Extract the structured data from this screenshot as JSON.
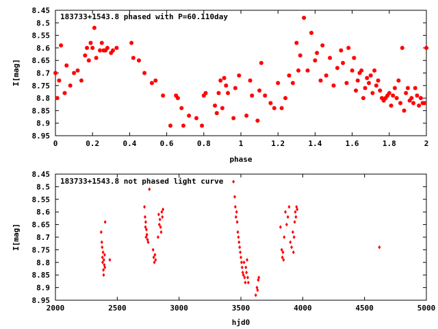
{
  "chart_data": [
    {
      "type": "scatter",
      "title": "183733+1543.8 phased with P=60.110day",
      "xlabel": "phase",
      "ylabel": "I[mag]",
      "xlim": [
        0,
        2
      ],
      "ylim": [
        8.95,
        8.45
      ],
      "y_inverted": true,
      "marker": "cross-star",
      "color": "#ff0000",
      "xticks": [
        "0",
        "0.2",
        "0.4",
        "0.6",
        "0.8",
        "1",
        "1.2",
        "1.4",
        "1.6",
        "1.8",
        "2"
      ],
      "yticks": [
        "8.45",
        "8.5",
        "8.55",
        "8.6",
        "8.65",
        "8.7",
        "8.75",
        "8.8",
        "8.85",
        "8.9",
        "8.95"
      ],
      "x": [
        0.0,
        0.01,
        0.02,
        0.03,
        0.05,
        0.06,
        0.08,
        0.1,
        0.12,
        0.14,
        0.16,
        0.17,
        0.18,
        0.19,
        0.2,
        0.21,
        0.22,
        0.24,
        0.25,
        0.26,
        0.27,
        0.28,
        0.3,
        0.31,
        0.33,
        0.41,
        0.42,
        0.45,
        0.48,
        0.52,
        0.54,
        0.58,
        0.62,
        0.65,
        0.66,
        0.68,
        0.69,
        0.72,
        0.76,
        0.79,
        0.8,
        0.81,
        0.86,
        0.87,
        0.88,
        0.89,
        0.9,
        0.91,
        0.92,
        0.93,
        0.96,
        0.97,
        0.99,
        1.03,
        1.05,
        1.06,
        1.09,
        1.1,
        1.11,
        1.13,
        1.16,
        1.18,
        1.2,
        1.22,
        1.24,
        1.26,
        1.28,
        1.3,
        1.31,
        1.32,
        1.34,
        1.36,
        1.38,
        1.4,
        1.41,
        1.43,
        1.44,
        1.46,
        1.48,
        1.5,
        1.52,
        1.54,
        1.55,
        1.57,
        1.58,
        1.6,
        1.61,
        1.62,
        1.63,
        1.64,
        1.65,
        1.66,
        1.67,
        1.68,
        1.69,
        1.7,
        1.71,
        1.72,
        1.73,
        1.74,
        1.75,
        1.76,
        1.77,
        1.78,
        1.79,
        1.8,
        1.81,
        1.82,
        1.83,
        1.84,
        1.85,
        1.86,
        1.87,
        1.88,
        1.89,
        1.9,
        1.91,
        1.92,
        1.93,
        1.94,
        1.95,
        1.96,
        1.97,
        1.98,
        1.99,
        2.0
      ],
      "y": [
        8.7,
        8.8,
        8.73,
        8.59,
        8.78,
        8.67,
        8.75,
        8.7,
        8.69,
        8.73,
        8.63,
        8.6,
        8.65,
        8.58,
        8.6,
        8.52,
        8.64,
        8.61,
        8.58,
        8.61,
        8.61,
        8.6,
        8.62,
        8.61,
        8.6,
        8.58,
        8.64,
        8.65,
        8.7,
        8.74,
        8.73,
        8.79,
        8.91,
        8.79,
        8.8,
        8.84,
        8.91,
        8.87,
        8.88,
        8.91,
        8.79,
        8.78,
        8.83,
        8.86,
        8.78,
        8.73,
        8.84,
        8.72,
        8.75,
        8.78,
        8.88,
        8.76,
        8.71,
        8.87,
        8.73,
        8.79,
        8.89,
        8.77,
        8.66,
        8.79,
        8.82,
        8.84,
        8.74,
        8.84,
        8.8,
        8.71,
        8.74,
        8.58,
        8.69,
        8.63,
        8.48,
        8.69,
        8.54,
        8.65,
        8.62,
        8.73,
        8.59,
        8.71,
        8.64,
        8.75,
        8.68,
        8.61,
        8.66,
        8.74,
        8.6,
        8.69,
        8.64,
        8.77,
        8.73,
        8.7,
        8.69,
        8.8,
        8.76,
        8.72,
        8.74,
        8.71,
        8.78,
        8.69,
        8.75,
        8.73,
        8.77,
        8.8,
        8.81,
        8.8,
        8.79,
        8.78,
        8.83,
        8.79,
        8.76,
        8.8,
        8.73,
        8.82,
        8.6,
        8.85,
        8.78,
        8.76,
        8.81,
        8.8,
        8.82,
        8.76,
        8.79,
        8.83,
        8.8,
        8.82,
        8.82,
        8.6
      ]
    },
    {
      "type": "scatter",
      "title": "183733+1543.8 not phased light curve",
      "xlabel": "hjd0",
      "ylabel": "I[mag]",
      "xlim": [
        2000,
        5000
      ],
      "ylim": [
        8.95,
        8.45
      ],
      "y_inverted": true,
      "marker": "diamond",
      "color": "#ff0000",
      "xticks": [
        "2000",
        "2500",
        "3000",
        "3500",
        "4000",
        "4500",
        "5000"
      ],
      "yticks": [
        "8.45",
        "8.5",
        "8.55",
        "8.6",
        "8.65",
        "8.7",
        "8.75",
        "8.8",
        "8.85",
        "8.9",
        "8.95"
      ],
      "x": [
        2370,
        2375,
        2378,
        2380,
        2382,
        2385,
        2388,
        2390,
        2392,
        2395,
        2398,
        2400,
        2402,
        2440,
        2720,
        2725,
        2728,
        2730,
        2733,
        2736,
        2740,
        2745,
        2750,
        2760,
        2790,
        2795,
        2800,
        2805,
        2810,
        2830,
        2835,
        2840,
        2845,
        2850,
        2855,
        2860,
        2865,
        2870,
        3440,
        3450,
        3455,
        3460,
        3465,
        3470,
        3475,
        3480,
        3485,
        3490,
        3495,
        3500,
        3505,
        3510,
        3515,
        3520,
        3525,
        3530,
        3535,
        3540,
        3545,
        3550,
        3555,
        3560,
        3620,
        3630,
        3635,
        3640,
        3645,
        3820,
        3830,
        3835,
        3840,
        3845,
        3850,
        3860,
        3870,
        3880,
        3890,
        3900,
        3910,
        3920,
        3925,
        3930,
        3935,
        3940,
        3945,
        3950,
        3955,
        4620
      ],
      "y": [
        8.68,
        8.72,
        8.74,
        8.78,
        8.8,
        8.76,
        8.83,
        8.85,
        8.79,
        8.81,
        8.77,
        8.82,
        8.64,
        8.79,
        8.58,
        8.62,
        8.66,
        8.64,
        8.7,
        8.67,
        8.69,
        8.71,
        8.72,
        8.51,
        8.75,
        8.78,
        8.8,
        8.77,
        8.79,
        8.7,
        8.61,
        8.65,
        8.63,
        8.66,
        8.68,
        8.6,
        8.62,
        8.59,
        8.48,
        8.54,
        8.58,
        8.62,
        8.6,
        8.64,
        8.68,
        8.7,
        8.72,
        8.74,
        8.76,
        8.78,
        8.8,
        8.82,
        8.84,
        8.85,
        8.8,
        8.86,
        8.88,
        8.82,
        8.84,
        8.79,
        8.86,
        8.88,
        8.93,
        8.9,
        8.91,
        8.87,
        8.86,
        8.66,
        8.75,
        8.78,
        8.76,
        8.79,
        8.7,
        8.6,
        8.65,
        8.62,
        8.58,
        8.72,
        8.74,
        8.68,
        8.76,
        8.7,
        8.64,
        8.6,
        8.62,
        8.58,
        8.59,
        8.74
      ]
    }
  ]
}
